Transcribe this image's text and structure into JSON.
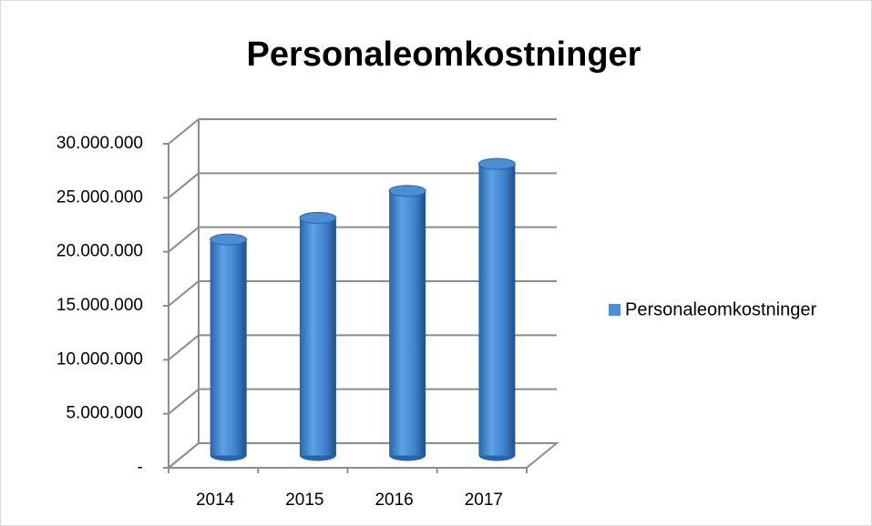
{
  "chart_data": {
    "type": "bar3d",
    "title": "Personaleomkostninger",
    "categories": [
      "2014",
      "2015",
      "2016",
      "2017"
    ],
    "series": [
      {
        "name": "Personaleomkostninger",
        "color": "#4a8fd6",
        "values": [
          20000000,
          22000000,
          24500000,
          27000000
        ]
      }
    ],
    "ylim": [
      0,
      30000000
    ],
    "yticks": [
      {
        "value": 0,
        "label": "-"
      },
      {
        "value": 5000000,
        "label": "5.000.000"
      },
      {
        "value": 10000000,
        "label": "10.000.000"
      },
      {
        "value": 15000000,
        "label": "15.000.000"
      },
      {
        "value": 20000000,
        "label": "20.000.000"
      },
      {
        "value": 25000000,
        "label": "25.000.000"
      },
      {
        "value": 30000000,
        "label": "30.000.000"
      }
    ],
    "grid": true,
    "legend": "right"
  }
}
